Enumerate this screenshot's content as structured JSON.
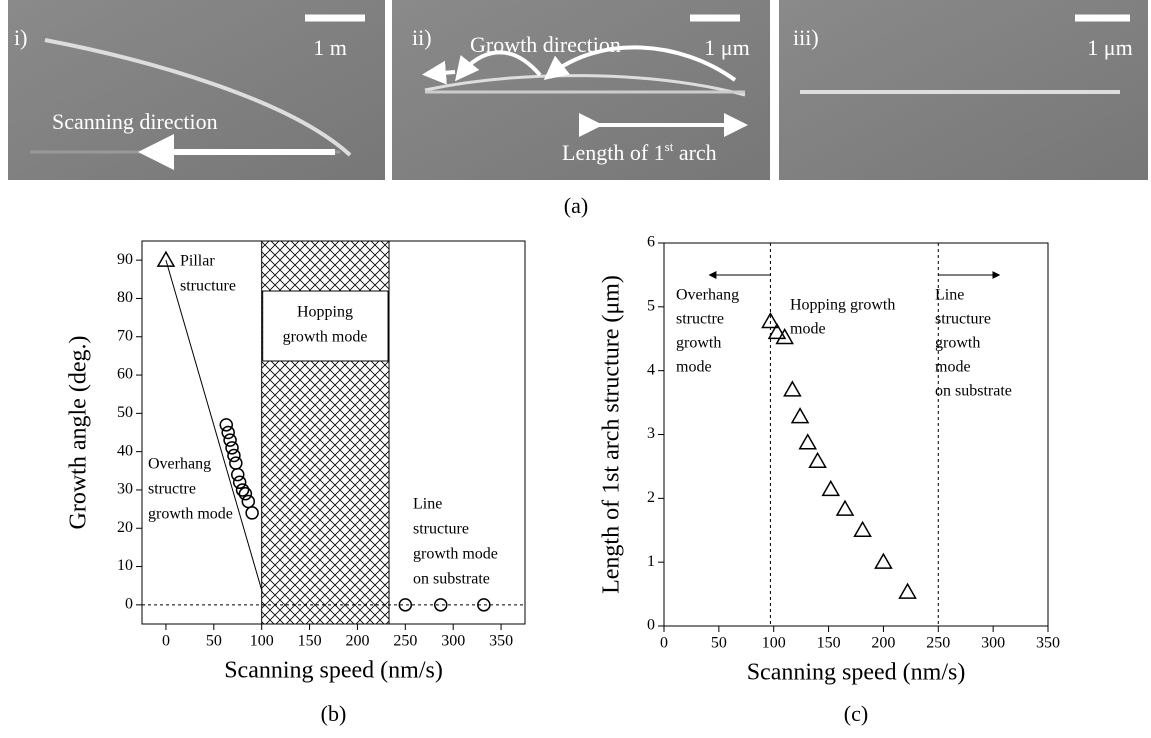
{
  "images": [
    {
      "label": "i)",
      "scale": "1  m",
      "annotation": "Scanning direction"
    },
    {
      "label": "ii)",
      "scale": "1 μm",
      "annotation": "Growth direction",
      "length_text": "Length of 1",
      "length_sup": "st",
      "length_end": " arch"
    },
    {
      "label": "iii)",
      "scale": "1 μm"
    }
  ],
  "caption": "(a)",
  "chart_data": [
    {
      "type": "scatter",
      "caption": "(b)",
      "x_label": "Scanning speed (nm/s)",
      "y_label": "Growth angle (deg.)",
      "xlim": [
        -25,
        375
      ],
      "xticks": [
        0,
        50,
        100,
        150,
        200,
        250,
        300,
        350
      ],
      "ylim": [
        -5,
        95
      ],
      "yticks": [
        0,
        10,
        20,
        30,
        40,
        50,
        60,
        70,
        80,
        90
      ],
      "series": [
        {
          "marker": "triangle",
          "color": "#000000",
          "x": [
            0
          ],
          "values": [
            90
          ]
        },
        {
          "marker": "circle",
          "color": "#000000",
          "x": [
            63,
            65,
            67,
            69,
            71,
            73,
            75,
            77,
            80,
            83,
            86,
            90,
            250,
            287,
            332
          ],
          "values": [
            47,
            45,
            43,
            41,
            39,
            37,
            34,
            32,
            30,
            29,
            27,
            24,
            0,
            0,
            0
          ]
        }
      ],
      "fit_line": {
        "x": [
          0,
          101
        ],
        "y": [
          90,
          3
        ]
      },
      "hatch_region": [
        100,
        233
      ],
      "h_reference": [
        0
      ],
      "annotations": [
        [
          "Pillar",
          "structure"
        ],
        [
          "Hopping",
          "growth mode"
        ],
        [
          "Overhang",
          "structre",
          "growth mode"
        ],
        [
          "Line",
          "structure",
          "growth mode",
          "on substrate"
        ]
      ]
    },
    {
      "type": "scatter",
      "caption": "(c)",
      "x_label": "Scanning speed (nm/s)",
      "y_label": "Length of 1st arch structure (μm)",
      "xlim": [
        0,
        350
      ],
      "xticks": [
        0,
        50,
        100,
        150,
        200,
        250,
        300,
        350
      ],
      "ylim": [
        0,
        6
      ],
      "yticks": [
        0,
        1,
        2,
        3,
        4,
        5,
        6
      ],
      "series": [
        {
          "marker": "triangle",
          "color": "#000000",
          "x": [
            97,
            103,
            110,
            117,
            124,
            131,
            140,
            152,
            165,
            181,
            200,
            222
          ],
          "values": [
            4.77,
            4.6,
            4.52,
            3.7,
            3.28,
            2.87,
            2.58,
            2.14,
            1.83,
            1.5,
            1.0,
            0.53
          ]
        }
      ],
      "v_reference": [
        97,
        250
      ],
      "annotations": [
        [
          "Overhang",
          "structre",
          "growth",
          "mode"
        ],
        [
          "Hopping growth",
          "mode"
        ],
        [
          "Line",
          "structure",
          "growth",
          "mode",
          "on substrate"
        ]
      ]
    }
  ]
}
